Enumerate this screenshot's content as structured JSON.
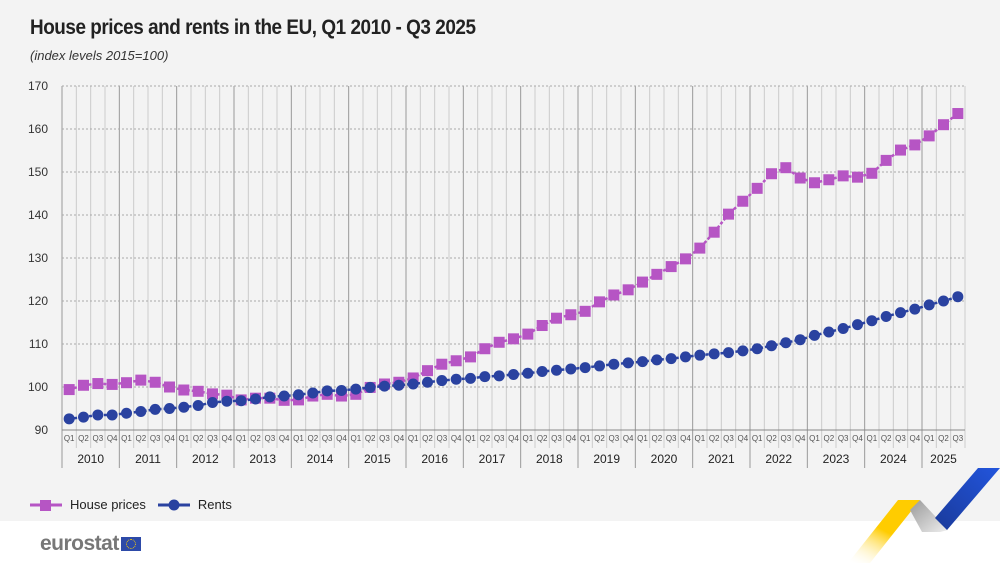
{
  "title": "House prices and rents in the EU, Q1 2010 - Q3 2025",
  "subtitle": "(index levels 2015=100)",
  "brand": {
    "logo_text": "eurostat"
  },
  "chart_data": {
    "type": "line",
    "title": "House prices and rents in the EU, Q1 2010 - Q3 2025",
    "subtitle": "(index levels 2015=100)",
    "ylim": [
      90,
      170
    ],
    "yticks": [
      90,
      100,
      110,
      120,
      130,
      140,
      150,
      160,
      170
    ],
    "grid": true,
    "legend_position": "bottom-left",
    "years": [
      "2010",
      "2011",
      "2012",
      "2013",
      "2014",
      "2015",
      "2016",
      "2017",
      "2018",
      "2019",
      "2020",
      "2021",
      "2022",
      "2023",
      "2024",
      "2025"
    ],
    "quarter_labels": [
      "Q1",
      "Q2",
      "Q3",
      "Q4"
    ],
    "series": [
      {
        "name": "House prices",
        "marker": "square",
        "color": "#b655c4",
        "values": [
          99.4,
          100.4,
          100.8,
          100.6,
          101.0,
          101.6,
          101.1,
          100.0,
          99.3,
          99.0,
          98.4,
          98.1,
          97.0,
          97.4,
          97.4,
          96.9,
          97.0,
          97.9,
          98.3,
          97.9,
          98.3,
          99.9,
          100.7,
          101.1,
          102.1,
          103.8,
          105.3,
          106.1,
          107.0,
          108.9,
          110.4,
          111.2,
          112.3,
          114.3,
          116.0,
          116.8,
          117.6,
          119.8,
          121.4,
          122.6,
          124.4,
          126.2,
          128.0,
          129.8,
          132.3,
          136.0,
          140.2,
          143.2,
          146.2,
          149.6,
          151.0,
          148.6,
          147.5,
          148.2,
          149.1,
          148.8,
          149.7,
          152.7,
          155.1,
          156.3,
          158.4,
          161.0,
          163.6
        ]
      },
      {
        "name": "Rents",
        "marker": "circle",
        "color": "#2a42a0",
        "values": [
          92.6,
          93.0,
          93.5,
          93.5,
          93.9,
          94.3,
          94.8,
          95.0,
          95.3,
          95.7,
          96.4,
          96.7,
          96.8,
          97.2,
          97.7,
          97.9,
          98.2,
          98.6,
          99.1,
          99.2,
          99.5,
          99.9,
          100.2,
          100.4,
          100.7,
          101.1,
          101.5,
          101.8,
          102.0,
          102.4,
          102.6,
          102.9,
          103.2,
          103.6,
          103.9,
          104.2,
          104.5,
          104.9,
          105.3,
          105.6,
          105.9,
          106.3,
          106.6,
          107.0,
          107.4,
          107.7,
          108.0,
          108.4,
          108.9,
          109.6,
          110.3,
          111.0,
          112.0,
          112.8,
          113.6,
          114.5,
          115.4,
          116.4,
          117.3,
          118.1,
          119.1,
          120.0,
          121.0
        ]
      }
    ]
  }
}
